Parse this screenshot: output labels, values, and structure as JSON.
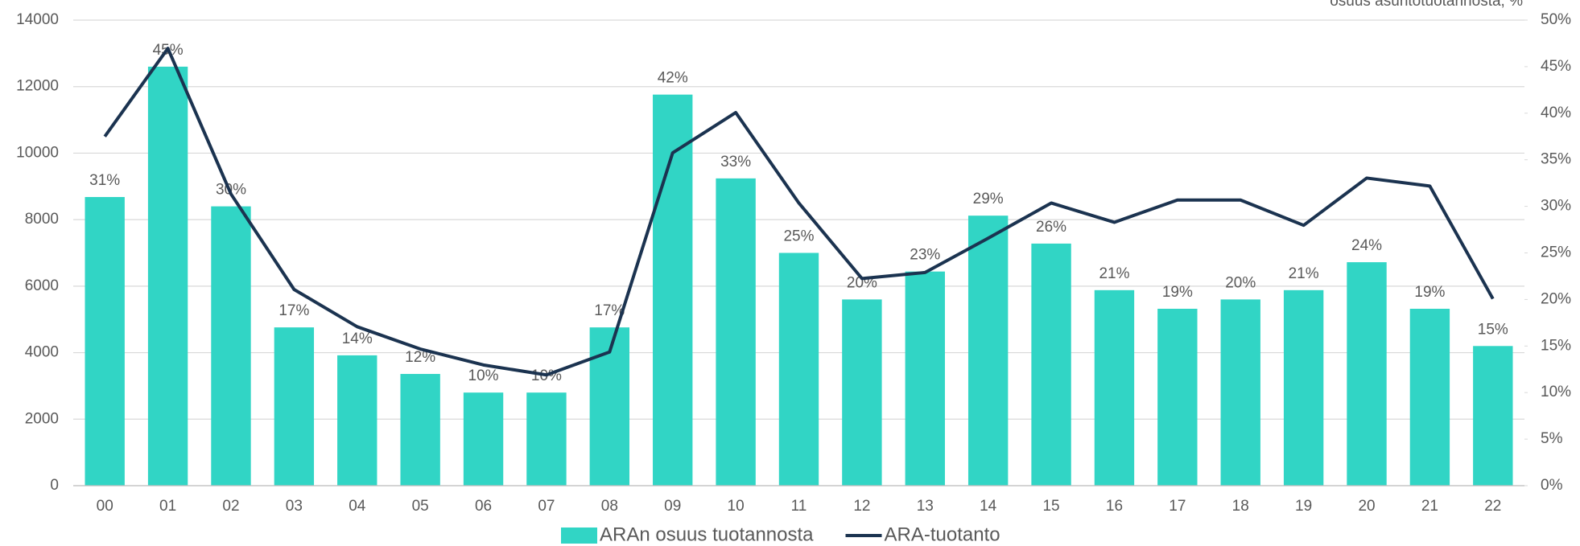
{
  "chart_data": {
    "type": "combo",
    "y2label": "osuus asuntotuotannosta, %",
    "categories": [
      "00",
      "01",
      "02",
      "03",
      "04",
      "05",
      "06",
      "07",
      "08",
      "09",
      "10",
      "11",
      "12",
      "13",
      "14",
      "15",
      "16",
      "17",
      "18",
      "19",
      "20",
      "21",
      "22"
    ],
    "series": [
      {
        "name": "ARAn osuus tuotannosta",
        "type": "bar",
        "axis": "y2",
        "color": "#31d5c5",
        "values": [
          31,
          45,
          30,
          17,
          14,
          12,
          10,
          10,
          17,
          42,
          33,
          25,
          20,
          23,
          29,
          26,
          21,
          19,
          20,
          21,
          24,
          19,
          15
        ],
        "value_labels": [
          "31%",
          "45%",
          "30%",
          "17%",
          "14%",
          "12%",
          "10%",
          "10%",
          "17%",
          "42%",
          "33%",
          "25%",
          "20%",
          "23%",
          "29%",
          "26%",
          "21%",
          "19%",
          "20%",
          "21%",
          "24%",
          "19%",
          "15%"
        ]
      },
      {
        "name": "ARA-tuotanto",
        "type": "line",
        "axis": "y",
        "color": "#1b3350",
        "values": [
          10500,
          13150,
          8770,
          5900,
          4780,
          4110,
          3630,
          3330,
          4020,
          10010,
          11220,
          8500,
          6230,
          6410,
          7440,
          8500,
          7920,
          8590,
          8590,
          7830,
          9250,
          9010,
          5620
        ]
      }
    ],
    "ylim": [
      0,
      14000
    ],
    "yticks": [
      0,
      2000,
      4000,
      6000,
      8000,
      10000,
      12000,
      14000
    ],
    "y2lim": [
      0,
      50
    ],
    "y2ticks": [
      {
        "value": 0,
        "label": "0%"
      },
      {
        "value": 5,
        "label": "5%"
      },
      {
        "value": 10,
        "label": "10%"
      },
      {
        "value": 15,
        "label": "15%"
      },
      {
        "value": 20,
        "label": "20%"
      },
      {
        "value": 25,
        "label": "25%"
      },
      {
        "value": 30,
        "label": "30%"
      },
      {
        "value": 35,
        "label": "35%"
      },
      {
        "value": 40,
        "label": "40%"
      },
      {
        "value": 45,
        "label": "45%"
      },
      {
        "value": 50,
        "label": "50%"
      }
    ],
    "grid": true,
    "legend": "bottom"
  }
}
